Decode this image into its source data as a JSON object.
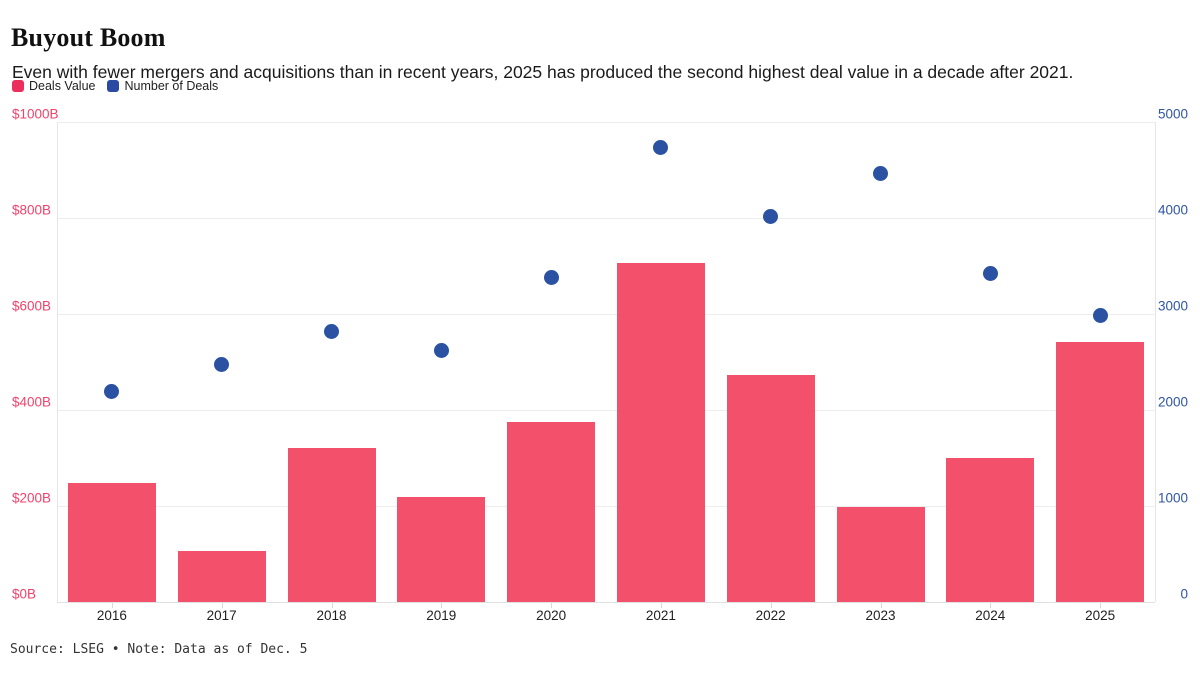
{
  "header": {
    "title": "Buyout Boom",
    "subtitle": "Even with fewer mergers and acquisitions than in recent years, 2025 has produced the second highest deal value in a decade after 2021."
  },
  "legend": [
    {
      "id": "deals-value",
      "label": "Deals Value",
      "color": "#EC2E5C"
    },
    {
      "id": "number-of-deals",
      "label": "Number of Deals",
      "color": "#2B4BA3"
    }
  ],
  "footer": {
    "source_note": "Source: LSEG • Note: Data as of Dec. 5"
  },
  "colors": {
    "bar": "#F3506C",
    "dot": "#2B51A2",
    "left_axis_labels": "#F0436B",
    "right_axis_labels": "#2F55A5",
    "gridline": "#ededed"
  },
  "chart_data": {
    "type": "bar",
    "subtype": "dual-axis bar + scatter",
    "title": "Buyout Boom",
    "categories": [
      "2016",
      "2017",
      "2018",
      "2019",
      "2020",
      "2021",
      "2022",
      "2023",
      "2024",
      "2025"
    ],
    "series": [
      {
        "name": "Deals Value",
        "mark": "bar",
        "axis": "left",
        "unit": "$B",
        "color": "#F3506C",
        "values": [
          248,
          107,
          320,
          218,
          376,
          707,
          473,
          197,
          301,
          541
        ]
      },
      {
        "name": "Number of Deals",
        "mark": "scatter",
        "axis": "right",
        "unit": "deals",
        "color": "#2B51A2",
        "values": [
          2190,
          2470,
          2820,
          2615,
          3385,
          4730,
          4020,
          4460,
          3420,
          2980
        ]
      }
    ],
    "left_axis": {
      "label": "Deals Value",
      "ticks": [
        "$0B",
        "$200B",
        "$400B",
        "$600B",
        "$800B",
        "$1000B"
      ],
      "range": [
        0,
        1000
      ]
    },
    "right_axis": {
      "label": "Number of Deals",
      "ticks": [
        "0",
        "1000",
        "2000",
        "3000",
        "4000",
        "5000"
      ],
      "range": [
        0,
        5000
      ]
    },
    "grid": "horizontal gridlines at 200B / 1000-deal intervals",
    "legend_position": "top-left"
  }
}
